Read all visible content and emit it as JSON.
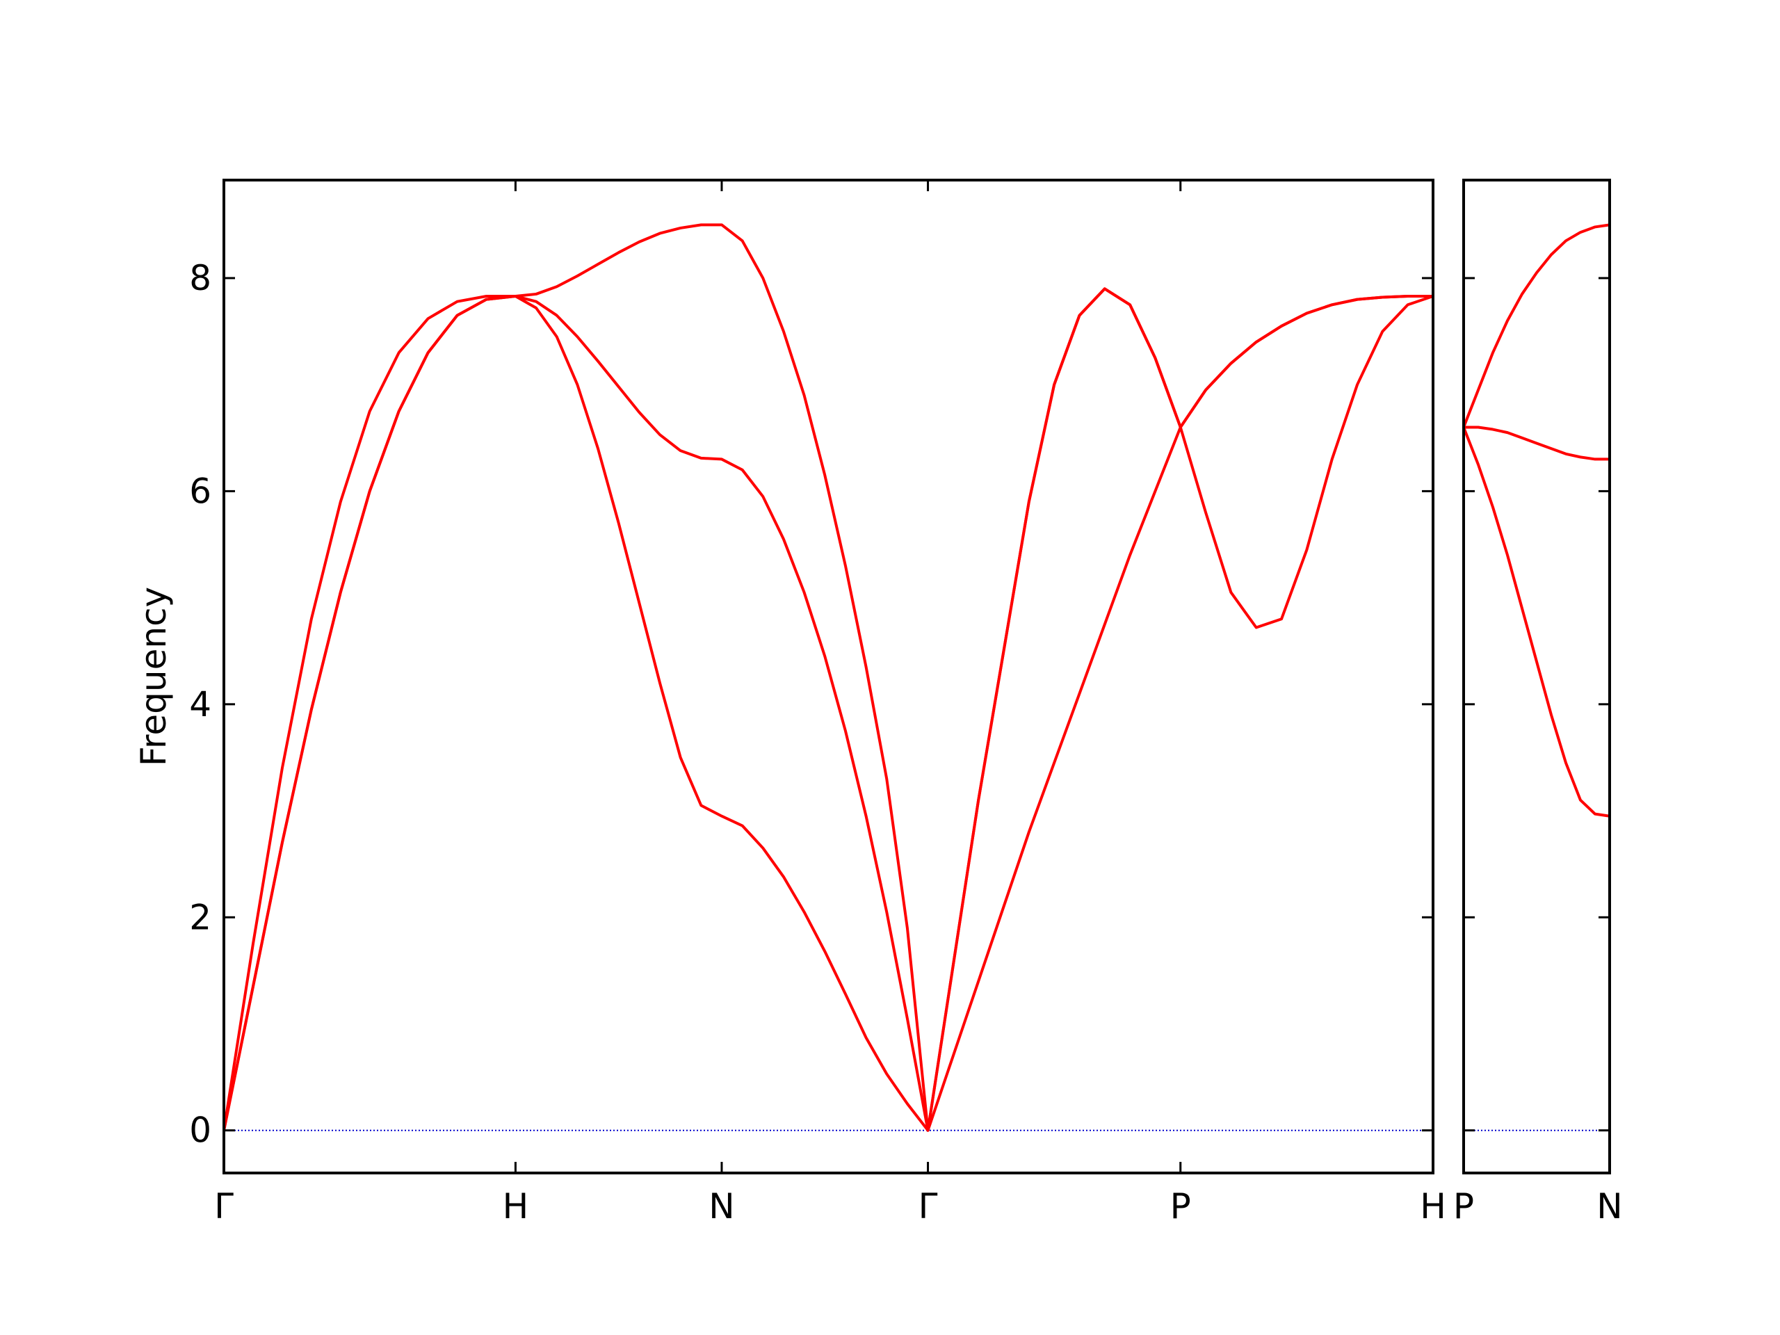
{
  "chart_data": [
    {
      "type": "line",
      "ylabel": "Frequency",
      "x": [
        0,
        0.1,
        0.2,
        0.3,
        0.4,
        0.5,
        0.6,
        0.7,
        0.8,
        0.9,
        1.0,
        1.0707,
        1.1414,
        1.2121,
        1.2828,
        1.3536,
        1.4243,
        1.495,
        1.5657,
        1.6364,
        1.7071,
        1.7778,
        1.8485,
        1.9192,
        1.9899,
        2.0607,
        2.1314,
        2.2021,
        2.2728,
        2.3435,
        2.4142,
        2.5008,
        2.5874,
        2.674,
        2.7606,
        2.8472,
        2.9338,
        3.0204,
        3.107,
        3.1936,
        3.2802,
        3.3668,
        3.4534,
        3.54,
        3.6266,
        3.7133,
        3.7999,
        3.8865,
        3.9731,
        4.0597,
        4.1463
      ],
      "series": [
        {
          "color": "#ff0000",
          "values": [
            0,
            1.35,
            2.7,
            3.95,
            5.05,
            6.0,
            6.75,
            7.3,
            7.65,
            7.8,
            7.83,
            7.72,
            7.45,
            7.0,
            6.4,
            5.7,
            4.95,
            4.2,
            3.5,
            3.05,
            2.95,
            2.86,
            2.65,
            2.38,
            2.05,
            1.68,
            1.28,
            0.87,
            0.53,
            0.25,
            0,
            0.7,
            1.4,
            2.1,
            2.8,
            3.45,
            4.1,
            4.75,
            5.4,
            6.0,
            6.6,
            5.8,
            5.05,
            4.72,
            4.8,
            5.45,
            6.3,
            7.0,
            7.5,
            7.75,
            7.83
          ]
        },
        {
          "color": "#ff0000",
          "values": [
            0,
            1.35,
            2.7,
            3.95,
            5.05,
            6.0,
            6.75,
            7.3,
            7.65,
            7.8,
            7.83,
            7.78,
            7.65,
            7.45,
            7.22,
            6.98,
            6.74,
            6.53,
            6.38,
            6.31,
            6.3,
            6.2,
            5.95,
            5.55,
            5.05,
            4.45,
            3.75,
            2.95,
            2.05,
            1.05,
            0,
            1.55,
            3.1,
            4.5,
            5.9,
            7.0,
            7.65,
            7.9,
            7.75,
            7.25,
            6.6,
            6.95,
            7.2,
            7.4,
            7.55,
            7.67,
            7.75,
            7.8,
            7.82,
            7.83,
            7.83
          ]
        },
        {
          "color": "#ff0000",
          "values": [
            0,
            1.75,
            3.4,
            4.8,
            5.9,
            6.75,
            7.3,
            7.62,
            7.78,
            7.83,
            7.83,
            7.85,
            7.92,
            8.02,
            8.13,
            8.24,
            8.34,
            8.42,
            8.47,
            8.5,
            8.5,
            8.35,
            8.0,
            7.5,
            6.9,
            6.15,
            5.3,
            4.35,
            3.3,
            1.9,
            0,
            1.55,
            3.1,
            4.5,
            5.9,
            7.0,
            7.65,
            7.9,
            7.75,
            7.25,
            6.6,
            6.95,
            7.2,
            7.4,
            7.55,
            7.67,
            7.75,
            7.8,
            7.82,
            7.83,
            7.83
          ]
        }
      ],
      "xlim": [
        0,
        4.1463
      ],
      "xticks": [
        {
          "value": 0,
          "label": "Γ"
        },
        {
          "value": 1.0,
          "label": "H"
        },
        {
          "value": 1.7071,
          "label": "N"
        },
        {
          "value": 2.4142,
          "label": "Γ"
        },
        {
          "value": 3.2802,
          "label": "P"
        },
        {
          "value": 4.1463,
          "label": "H"
        }
      ],
      "ylim": [
        -0.4,
        8.92
      ],
      "yticks": [
        0,
        2,
        4,
        6,
        8
      ],
      "show_ytick_labels": true,
      "reference_line": {
        "y": 0,
        "color": "#0000cc",
        "style": "dotted"
      }
    },
    {
      "type": "line",
      "x": [
        0,
        0.05,
        0.1,
        0.15,
        0.2,
        0.25,
        0.3,
        0.35,
        0.4,
        0.45,
        0.5
      ],
      "series": [
        {
          "color": "#ff0000",
          "values": [
            6.6,
            6.95,
            7.3,
            7.6,
            7.85,
            8.05,
            8.22,
            8.35,
            8.43,
            8.48,
            8.5
          ]
        },
        {
          "color": "#ff0000",
          "values": [
            6.6,
            6.6,
            6.58,
            6.55,
            6.5,
            6.45,
            6.4,
            6.35,
            6.32,
            6.3,
            6.3
          ]
        },
        {
          "color": "#ff0000",
          "values": [
            6.6,
            6.25,
            5.85,
            5.4,
            4.9,
            4.4,
            3.9,
            3.45,
            3.1,
            2.97,
            2.95
          ]
        }
      ],
      "xlim": [
        0,
        0.5
      ],
      "xticks": [
        {
          "value": 0,
          "label": "P"
        },
        {
          "value": 0.5,
          "label": "N"
        }
      ],
      "ylim": [
        -0.4,
        8.92
      ],
      "yticks": [
        0,
        2,
        4,
        6,
        8
      ],
      "show_ytick_labels": false,
      "reference_line": {
        "y": 0,
        "color": "#0000cc",
        "style": "dotted"
      }
    }
  ]
}
